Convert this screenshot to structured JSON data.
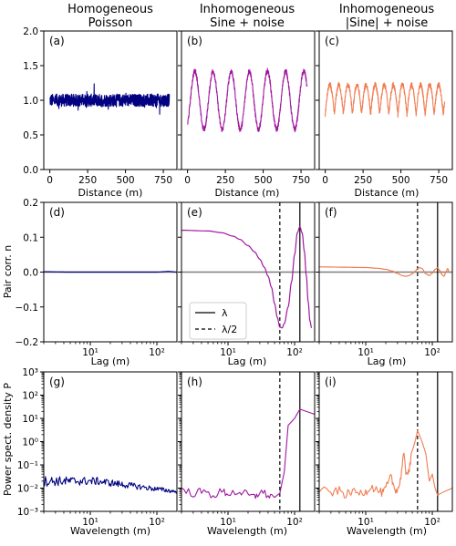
{
  "colors": {
    "blue": "#000080",
    "purple": "#A0189F",
    "orange": "#F07D52",
    "ref": "#7f7f7f",
    "axis": "#000000"
  },
  "titles": [
    {
      "line1": "Homogeneous",
      "line2": "Poisson"
    },
    {
      "line1": "Inhomogeneous",
      "line2": "Sine + noise"
    },
    {
      "line1": "Inhomogeneous",
      "line2": "|Sine| + noise"
    }
  ],
  "row_labels": {
    "xlabel_top": "Distance (m)",
    "xlabel_mid": "Lag (m)",
    "xlabel_bot": "Wavelength (m)",
    "ylabel_mid": "Pair corr. n",
    "ylabel_bot": "Power spect. density P"
  },
  "panel_labels": [
    "(a)",
    "(b)",
    "(c)",
    "(d)",
    "(e)",
    "(f)",
    "(g)",
    "(h)",
    "(i)"
  ],
  "legend": {
    "solid": "λ",
    "dashed": "λ/2"
  },
  "ticks": {
    "top_x": [
      "0",
      "250",
      "500",
      "750"
    ],
    "top_y": [
      "0.0",
      "0.5",
      "1.0",
      "1.5",
      "2.0"
    ],
    "mid_x": [
      "10¹",
      "10²"
    ],
    "mid_y": [
      "−0.2",
      "−0.1",
      "0.0",
      "0.1",
      "0.2"
    ],
    "bot_x": [
      "10¹",
      "10²"
    ],
    "bot_y": [
      "10⁻³",
      "10⁻²",
      "10⁻¹",
      "10⁰",
      "10¹",
      "10²",
      "10³"
    ]
  },
  "chart_data": [
    {
      "panel": "(a)",
      "type": "line",
      "title": "Homogeneous Poisson",
      "xlabel": "Distance (m)",
      "ylabel": "",
      "xlim": [
        -40,
        840
      ],
      "ylim": [
        0,
        2
      ],
      "series": [
        {
          "generator": "noise",
          "mean": 1.0,
          "amplitude": 0.09,
          "x_range": [
            0,
            790
          ],
          "color": "#000080"
        }
      ]
    },
    {
      "panel": "(b)",
      "type": "line",
      "title": "Inhomogeneous Sine + noise",
      "xlabel": "Distance (m)",
      "ylabel": "",
      "xlim": [
        -40,
        840
      ],
      "ylim": [
        0,
        2
      ],
      "series": [
        {
          "generator": "sine_noise",
          "mean": 1.0,
          "sine_amplitude": 0.42,
          "period": 120,
          "noise": 0.04,
          "x_range": [
            0,
            790
          ],
          "color": "#A0189F"
        }
      ]
    },
    {
      "panel": "(c)",
      "type": "line",
      "title": "Inhomogeneous |Sine| + noise",
      "xlabel": "Distance (m)",
      "ylabel": "",
      "xlim": [
        -40,
        840
      ],
      "ylim": [
        0,
        2
      ],
      "series": [
        {
          "generator": "abs_sine_noise",
          "base": 1.05,
          "sine_amplitude": 0.43,
          "period": 120,
          "noise": 0.04,
          "x_range": [
            0,
            790
          ],
          "color": "#F07D52"
        }
      ]
    },
    {
      "panel": "(d)",
      "type": "line",
      "xlabel": "Lag (m)",
      "ylabel": "Pair corr. n",
      "xscale": "log",
      "xlim": [
        2,
        200
      ],
      "ylim": [
        -0.2,
        0.2
      ],
      "series": [
        {
          "x": [
            2,
            5,
            10,
            20,
            50,
            100,
            150,
            200
          ],
          "y": [
            0.001,
            0.0,
            0.0,
            0.0,
            0.0,
            0.0,
            0.002,
            0.0
          ],
          "color": "#000080"
        }
      ]
    },
    {
      "panel": "(e)",
      "type": "line",
      "xlabel": "Lag (m)",
      "ylabel": "",
      "xscale": "log",
      "xlim": [
        2,
        200
      ],
      "ylim": [
        -0.2,
        0.2
      ],
      "lambda": 120,
      "half_lambda": 60,
      "series": [
        {
          "x": [
            2,
            5,
            8,
            12,
            15,
            20,
            25,
            30,
            35,
            40,
            45,
            50,
            55,
            60,
            65,
            70,
            80,
            90,
            100,
            110,
            120,
            130,
            140,
            150,
            160,
            170,
            180
          ],
          "y": [
            0.12,
            0.118,
            0.113,
            0.103,
            0.094,
            0.076,
            0.058,
            0.037,
            0.014,
            -0.012,
            -0.044,
            -0.09,
            -0.13,
            -0.158,
            -0.16,
            -0.148,
            -0.1,
            -0.028,
            0.05,
            0.113,
            0.13,
            0.112,
            0.06,
            -0.01,
            -0.085,
            -0.14,
            -0.16
          ],
          "color": "#A0189F"
        }
      ]
    },
    {
      "panel": "(f)",
      "type": "line",
      "xlabel": "Lag (m)",
      "ylabel": "",
      "xscale": "log",
      "xlim": [
        2,
        200
      ],
      "ylim": [
        -0.2,
        0.2
      ],
      "lambda": 120,
      "half_lambda": 60,
      "series": [
        {
          "x": [
            2,
            5,
            10,
            15,
            20,
            25,
            30,
            35,
            40,
            45,
            50,
            55,
            60,
            65,
            70,
            80,
            90,
            100,
            110,
            120,
            130,
            140,
            150,
            160,
            170,
            180
          ],
          "y": [
            0.015,
            0.014,
            0.013,
            0.011,
            0.008,
            0.003,
            -0.004,
            -0.01,
            -0.012,
            -0.01,
            -0.005,
            0.002,
            0.01,
            0.013,
            0.01,
            -0.005,
            -0.01,
            -0.003,
            0.008,
            0.012,
            0.004,
            -0.008,
            -0.012,
            0.0,
            0.01,
            -0.002
          ],
          "color": "#F07D52"
        }
      ]
    },
    {
      "panel": "(g)",
      "type": "line",
      "xlabel": "Wavelength (m)",
      "ylabel": "Power spect. density P",
      "xscale": "log",
      "yscale": "log",
      "xlim": [
        2,
        200
      ],
      "ylim": [
        0.001,
        1000
      ],
      "series": [
        {
          "generator": "psd_flat",
          "level": 0.02,
          "end_level": 0.007,
          "jitter": 0.22,
          "color": "#000080"
        }
      ]
    },
    {
      "panel": "(h)",
      "type": "line",
      "xlabel": "Wavelength (m)",
      "ylabel": "",
      "xscale": "log",
      "yscale": "log",
      "xlim": [
        2,
        200
      ],
      "ylim": [
        0.001,
        1000
      ],
      "lambda": 120,
      "half_lambda": 60,
      "series": [
        {
          "x": [
            2,
            3,
            4,
            6,
            8,
            10,
            15,
            20,
            25,
            30,
            40,
            50,
            55,
            60,
            70,
            80,
            100,
            120,
            200
          ],
          "y": [
            0.008,
            0.006,
            0.007,
            0.005,
            0.007,
            0.006,
            0.007,
            0.005,
            0.004,
            0.007,
            0.005,
            0.004,
            0.005,
            0.006,
            0.05,
            5.0,
            10.0,
            25.0,
            15.0
          ],
          "color": "#A0189F"
        }
      ]
    },
    {
      "panel": "(i)",
      "type": "line",
      "xlabel": "Wavelength (m)",
      "ylabel": "",
      "xscale": "log",
      "yscale": "log",
      "xlim": [
        2,
        200
      ],
      "ylim": [
        0.001,
        1000
      ],
      "lambda": 120,
      "half_lambda": 60,
      "series": [
        {
          "x": [
            2,
            3,
            4,
            5,
            6,
            8,
            10,
            12,
            15,
            18,
            20,
            24,
            27,
            30,
            33,
            37,
            40,
            45,
            50,
            55,
            60,
            70,
            80,
            90,
            100,
            110,
            120,
            150,
            200
          ],
          "y": [
            0.009,
            0.006,
            0.008,
            0.005,
            0.007,
            0.006,
            0.007,
            0.012,
            0.008,
            0.006,
            0.01,
            0.03,
            0.01,
            0.008,
            0.02,
            0.3,
            0.05,
            0.06,
            0.4,
            1.0,
            3.0,
            1.0,
            0.3,
            0.02,
            0.04,
            0.01,
            0.005,
            0.007,
            0.01
          ],
          "color": "#F07D52"
        }
      ]
    }
  ]
}
